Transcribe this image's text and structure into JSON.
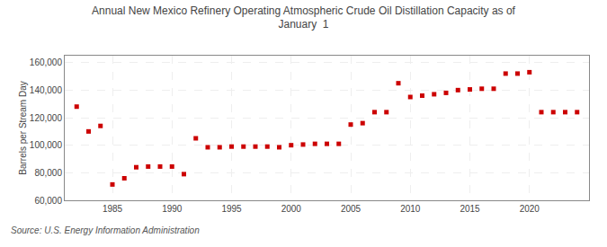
{
  "chart_data": {
    "type": "scatter",
    "title": "Annual New Mexico Refinery Operating Atmospheric Crude Oil Distillation Capacity as of\nJanuary  1",
    "ylabel": "Barrels per Stream Day",
    "annotations": [
      "Source: U.S. Energy Information Administration"
    ],
    "x": [
      1982,
      1983,
      1984,
      1985,
      1986,
      1987,
      1988,
      1989,
      1990,
      1991,
      1992,
      1993,
      1994,
      1995,
      1996,
      1997,
      1998,
      1999,
      2000,
      2001,
      2002,
      2003,
      2004,
      2005,
      2006,
      2007,
      2008,
      2009,
      2010,
      2011,
      2012,
      2013,
      2014,
      2015,
      2016,
      2017,
      2018,
      2019,
      2020,
      2021,
      2022,
      2023,
      2024
    ],
    "values": [
      128000,
      110000,
      114000,
      71500,
      76000,
      84000,
      84500,
      84500,
      84500,
      79000,
      105000,
      98500,
      98500,
      99000,
      99000,
      99000,
      99000,
      98500,
      100000,
      100500,
      101000,
      101000,
      101000,
      115000,
      116000,
      124000,
      124000,
      145000,
      135000,
      136000,
      137000,
      138000,
      140000,
      140500,
      141000,
      141000,
      152000,
      152000,
      153000,
      124000,
      124000,
      124000,
      124000
    ],
    "color": "#cc0000",
    "marker": "square",
    "xlim": [
      1981,
      2025
    ],
    "xticks": [
      1985,
      1990,
      1995,
      2000,
      2005,
      2010,
      2015,
      2020
    ],
    "ylim": [
      60000,
      165000
    ],
    "yticks": [
      {
        "value": 60000,
        "label": "60,000"
      },
      {
        "value": 80000,
        "label": "80,000"
      },
      {
        "value": 100000,
        "label": "100,000"
      },
      {
        "value": 120000,
        "label": "120,000"
      },
      {
        "value": 140000,
        "label": "140,000"
      },
      {
        "value": 160000,
        "label": "160,000"
      }
    ],
    "grid": true
  }
}
